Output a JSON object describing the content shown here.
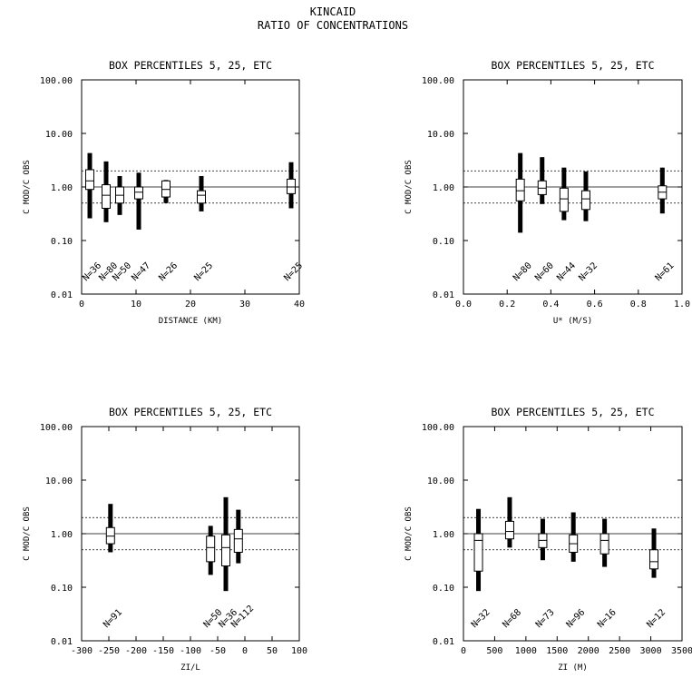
{
  "page": {
    "title_line1": "KINCAID",
    "title_line2": "RATIO OF CONCENTRATIONS"
  },
  "chart_data": [
    {
      "type": "box",
      "title": "BOX PERCENTILES  5, 25, ETC",
      "xlabel": "DISTANCE (KM)",
      "ylabel": "C MOD/C OBS",
      "yscale": "log",
      "ylim": [
        0.01,
        100
      ],
      "yticks": [
        "100.00",
        "10.00",
        "1.00",
        "0.10",
        "0.01"
      ],
      "xlim": [
        0,
        40
      ],
      "xticks": [
        "0",
        "10",
        "20",
        "30",
        "40"
      ],
      "reference_lines": {
        "solid": 1.0,
        "dotted": [
          0.5,
          2.0
        ]
      },
      "boxes": [
        {
          "x": 1.5,
          "p5": 0.26,
          "p25": 0.9,
          "median": 1.3,
          "p75": 2.1,
          "p95": 4.3,
          "label": "N=36"
        },
        {
          "x": 4.5,
          "p5": 0.22,
          "p25": 0.4,
          "median": 0.7,
          "p75": 1.1,
          "p95": 3.0,
          "label": "N=80"
        },
        {
          "x": 7.0,
          "p5": 0.3,
          "p25": 0.5,
          "median": 0.7,
          "p75": 1.0,
          "p95": 1.6,
          "label": "N=50"
        },
        {
          "x": 10.5,
          "p5": 0.16,
          "p25": 0.6,
          "median": 0.8,
          "p75": 1.0,
          "p95": 1.85,
          "label": "N=47"
        },
        {
          "x": 15.5,
          "p5": 0.5,
          "p25": 0.65,
          "median": 0.9,
          "p75": 1.3,
          "p95": 1.35,
          "label": "N=26"
        },
        {
          "x": 22.0,
          "p5": 0.35,
          "p25": 0.5,
          "median": 0.7,
          "p75": 0.85,
          "p95": 1.6,
          "label": "N=25"
        },
        {
          "x": 38.5,
          "p5": 0.4,
          "p25": 0.75,
          "median": 1.0,
          "p75": 1.4,
          "p95": 2.9,
          "label": "N=25"
        }
      ]
    },
    {
      "type": "box",
      "title": "BOX PERCENTILES  5, 25, ETC",
      "xlabel": "U* (M/S)",
      "ylabel": "C MOD/C OBS",
      "yscale": "log",
      "ylim": [
        0.01,
        100
      ],
      "yticks": [
        "100.00",
        "10.00",
        "1.00",
        "0.10",
        "0.01"
      ],
      "xlim": [
        0,
        1
      ],
      "xticks": [
        "0.0",
        "0.2",
        "0.4",
        "0.6",
        "0.8",
        "1.0"
      ],
      "reference_lines": {
        "solid": 1.0,
        "dotted": [
          0.5,
          2.0
        ]
      },
      "boxes": [
        {
          "x": 0.26,
          "p5": 0.14,
          "p25": 0.55,
          "median": 0.85,
          "p75": 1.4,
          "p95": 4.3,
          "label": "N=80"
        },
        {
          "x": 0.36,
          "p5": 0.48,
          "p25": 0.72,
          "median": 0.95,
          "p75": 1.3,
          "p95": 3.6,
          "label": "N=60"
        },
        {
          "x": 0.46,
          "p5": 0.24,
          "p25": 0.35,
          "median": 0.6,
          "p75": 0.95,
          "p95": 2.3,
          "label": "N=44"
        },
        {
          "x": 0.56,
          "p5": 0.23,
          "p25": 0.38,
          "median": 0.6,
          "p75": 0.85,
          "p95": 1.95,
          "label": "N=32"
        },
        {
          "x": 0.91,
          "p5": 0.32,
          "p25": 0.6,
          "median": 0.8,
          "p75": 1.05,
          "p95": 2.3,
          "label": "N=61"
        }
      ]
    },
    {
      "type": "box",
      "title": "BOX PERCENTILES  5, 25, ETC",
      "xlabel": "ZI/L",
      "ylabel": "C MOD/C OBS",
      "yscale": "log",
      "ylim": [
        0.01,
        100
      ],
      "yticks": [
        "100.00",
        "10.00",
        "1.00",
        "0.10",
        "0.01"
      ],
      "xlim": [
        -300,
        100
      ],
      "xticks": [
        "-300",
        "-250",
        "-200",
        "-150",
        "-100",
        "-50",
        "0",
        "50",
        "100"
      ],
      "reference_lines": {
        "solid": 1.0,
        "dotted": [
          0.5,
          2.0
        ]
      },
      "boxes": [
        {
          "x": -247,
          "p5": 0.45,
          "p25": 0.65,
          "median": 0.9,
          "p75": 1.3,
          "p95": 3.6,
          "label": "N=91"
        },
        {
          "x": -63,
          "p5": 0.17,
          "p25": 0.3,
          "median": 0.55,
          "p75": 0.9,
          "p95": 1.4,
          "label": "N=50"
        },
        {
          "x": -35,
          "p5": 0.085,
          "p25": 0.25,
          "median": 0.55,
          "p75": 0.95,
          "p95": 4.8,
          "label": "N=36"
        },
        {
          "x": -12,
          "p5": 0.28,
          "p25": 0.45,
          "median": 0.8,
          "p75": 1.2,
          "p95": 2.8,
          "label": "N=112"
        }
      ]
    },
    {
      "type": "box",
      "title": "BOX PERCENTILES  5, 25, ETC",
      "xlabel": "ZI (M)",
      "ylabel": "C MOD/C OBS",
      "yscale": "log",
      "ylim": [
        0.01,
        100
      ],
      "yticks": [
        "100.00",
        "10.00",
        "1.00",
        "0.10",
        "0.01"
      ],
      "xlim": [
        0,
        3500
      ],
      "xticks": [
        "0",
        "500",
        "1000",
        "1500",
        "2000",
        "2500",
        "3000",
        "3500"
      ],
      "reference_lines": {
        "solid": 1.0,
        "dotted": [
          0.5,
          2.0
        ]
      },
      "boxes": [
        {
          "x": 240,
          "p5": 0.085,
          "p25": 0.2,
          "median": 0.75,
          "p75": 1.0,
          "p95": 2.9,
          "label": "N=32"
        },
        {
          "x": 740,
          "p5": 0.55,
          "p25": 0.8,
          "median": 1.1,
          "p75": 1.7,
          "p95": 4.8,
          "label": "N=68"
        },
        {
          "x": 1270,
          "p5": 0.32,
          "p25": 0.55,
          "median": 0.75,
          "p75": 1.0,
          "p95": 1.9,
          "label": "N=73"
        },
        {
          "x": 1760,
          "p5": 0.3,
          "p25": 0.45,
          "median": 0.65,
          "p75": 0.95,
          "p95": 2.5,
          "label": "N=96"
        },
        {
          "x": 2260,
          "p5": 0.24,
          "p25": 0.42,
          "median": 0.75,
          "p75": 1.0,
          "p95": 1.9,
          "label": "N=16"
        },
        {
          "x": 3050,
          "p5": 0.15,
          "p25": 0.22,
          "median": 0.3,
          "p75": 0.5,
          "p95": 1.25,
          "label": "N=12"
        }
      ]
    }
  ]
}
